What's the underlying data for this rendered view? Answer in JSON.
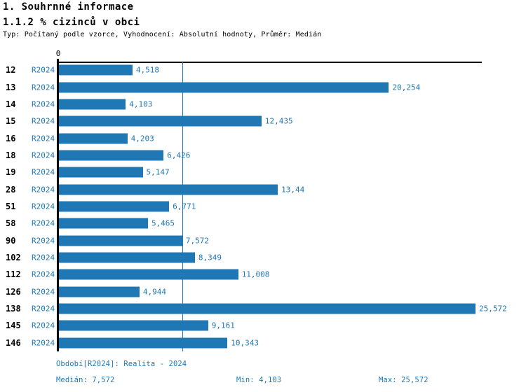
{
  "page": {
    "title1": "1. Souhrnné informace",
    "title2": "1.1.2 % cizinců v obci",
    "subtitle": "Typ: Počítaný podle vzorce, Vyhodnocení: Absolutní hodnoty, Průměr: Medián"
  },
  "chart_data": {
    "type": "bar",
    "orientation": "horizontal",
    "title": "1.1.2 % cizinců v obci",
    "xlabel": "",
    "ylabel": "",
    "axis_zero_label": "0",
    "xlim": [
      0,
      25.96
    ],
    "grid": false,
    "series_label": "R2024",
    "categories": [
      "12",
      "13",
      "14",
      "15",
      "16",
      "18",
      "19",
      "28",
      "51",
      "58",
      "90",
      "102",
      "112",
      "126",
      "138",
      "145",
      "146"
    ],
    "values": [
      4.518,
      20.254,
      4.103,
      12.435,
      4.203,
      6.426,
      5.147,
      13.44,
      6.771,
      5.465,
      7.572,
      8.349,
      11.008,
      4.944,
      25.572,
      9.161,
      10.343
    ],
    "value_labels": [
      "4,518",
      "20,254",
      "4,103",
      "12,435",
      "4,203",
      "6,426",
      "5,147",
      "13,44",
      "6,771",
      "5,465",
      "7,572",
      "8,349",
      "11,008",
      "4,944",
      "25,572",
      "9,161",
      "10,343"
    ],
    "median_line_value": 7.572,
    "bar_color": "#1f77b4",
    "annotations": {
      "median": 7.572,
      "min": 4.103,
      "max": 25.572
    }
  },
  "footer": {
    "period": "Období[R2024]: Realita - 2024",
    "median": "Medián: 7,572",
    "min": "Min: 4,103",
    "max": "Max: 25,572"
  }
}
